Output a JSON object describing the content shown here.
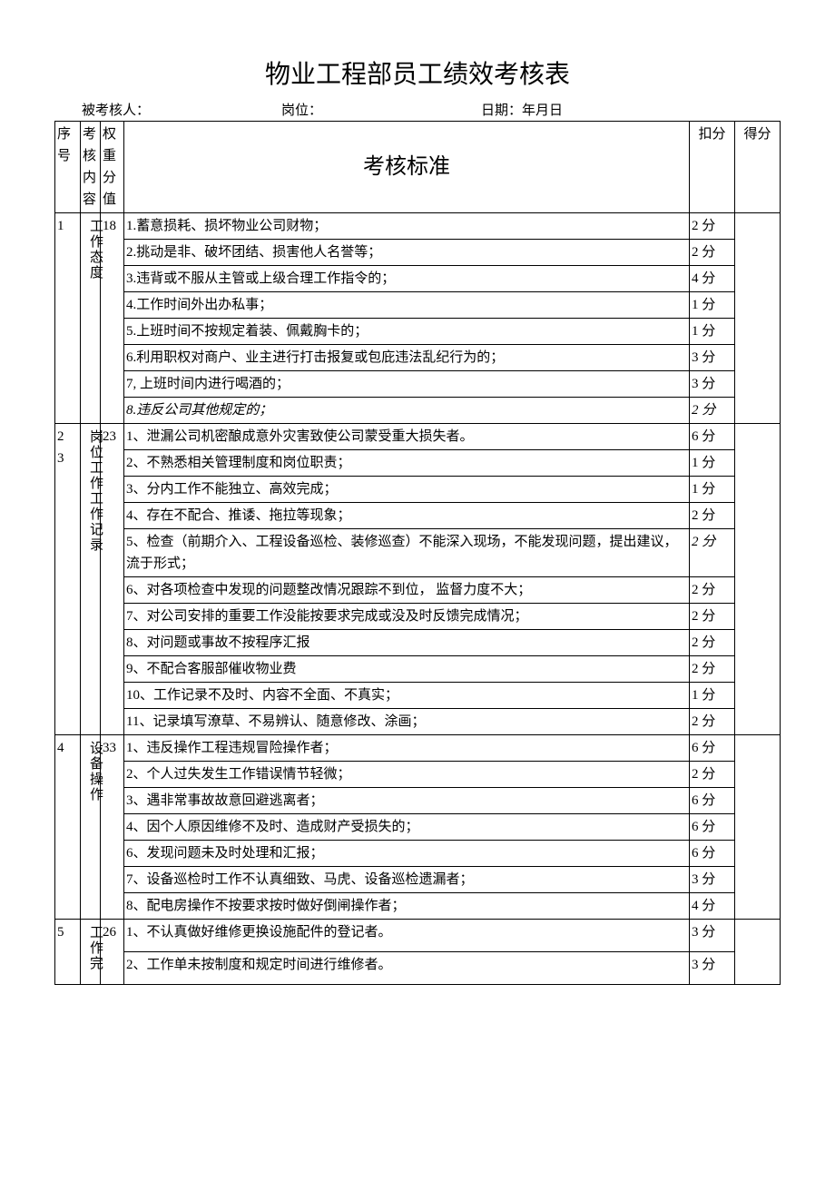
{
  "title": "物业工程部员工绩效考核表",
  "meta": {
    "assessee_label": "被考核人：",
    "position_label": "岗位：",
    "date_label": "日期：年月日"
  },
  "headers": {
    "seq": "序号",
    "category": "考核内容",
    "weight": "权重分值",
    "standard": "考核标准",
    "deduction": "扣分",
    "score": "得分"
  },
  "sections": [
    {
      "seq": "1",
      "category": "工作态度",
      "weight": "18",
      "rows": [
        {
          "std": "1.蓄意损耗、损坏物业公司财物；",
          "ded": "2 分"
        },
        {
          "std": "2.挑动是非、破坏团结、损害他人名誉等；",
          "ded": "2 分"
        },
        {
          "std": "3.违背或不服从主管或上级合理工作指令的；",
          "ded": "4 分"
        },
        {
          "std": "4.工作时间外出办私事；",
          "ded": "1 分"
        },
        {
          "std": "5.上班时间不按规定着装、佩戴胸卡的；",
          "ded": "1 分"
        },
        {
          "std": "6.利用职权对商户、业主进行打击报复或包庇违法乱纪行为的；",
          "ded": "3 分"
        },
        {
          "std": "7, 上班时间内进行喝酒的；",
          "ded": "3 分"
        },
        {
          "std": "8.违反公司其他规定的；",
          "ded": "2 分",
          "italic": true
        }
      ]
    },
    {
      "seq": "2\n3",
      "category": "岗位工作工作记录",
      "weight": "23",
      "rows": [
        {
          "std": "1、泄漏公司机密酿成意外灾害致使公司蒙受重大损失者。",
          "ded": "6 分"
        },
        {
          "std": "2、不熟悉相关管理制度和岗位职责；",
          "ded": "1 分"
        },
        {
          "std": "3、分内工作不能独立、高效完成；",
          "ded": "1 分"
        },
        {
          "std": "4、存在不配合、推诿、拖拉等现象；",
          "ded": "2 分"
        },
        {
          "std": "5、检查（前期介入、工程设备巡检、装修巡查）不能深入现场，不能发现问题，提出建议，流于形式；",
          "ded": "2 分",
          "italic_ded": true
        },
        {
          "std": "6、对各项检查中发现的问题整改情况跟踪不到位， 监督力度不大；",
          "ded": "2 分"
        },
        {
          "std": "7、对公司安排的重要工作没能按要求完成或没及时反馈完成情况；",
          "ded": "2 分"
        },
        {
          "std": "8、对问题或事故不按程序汇报",
          "ded": "2 分"
        },
        {
          "std": "9、不配合客服部催收物业费",
          "ded": "2 分"
        },
        {
          "std": "10、工作记录不及时、内容不全面、不真实；",
          "ded": "1 分"
        },
        {
          "std": "11、记录填写潦草、不易辨认、随意修改、涂画；",
          "ded": "2 分"
        }
      ]
    },
    {
      "seq": "4",
      "category": "设备操作",
      "weight": "33",
      "rows": [
        {
          "std": "1、违反操作工程违规冒险操作者；",
          "ded": "6 分"
        },
        {
          "std": "2、个人过失发生工作错误情节轻微；",
          "ded": "2 分"
        },
        {
          "std": "3、遇非常事故故意回避逃离者；",
          "ded": "6 分"
        },
        {
          "std": "4、因个人原因维修不及时、造成财产受损失的；",
          "ded": "6 分"
        },
        {
          "std": "6、发现问题未及时处理和汇报；",
          "ded": "6 分"
        },
        {
          "std": "7、设备巡检时工作不认真细致、马虎、设备巡检遗漏者；",
          "ded": "3 分"
        },
        {
          "std": "8、配电房操作不按要求按时做好倒闸操作者；",
          "ded": "4 分"
        }
      ]
    },
    {
      "seq": "5",
      "category": "工作完",
      "weight": "26",
      "rows": [
        {
          "std": "1、不认真做好维修更换设施配件的登记者。",
          "ded": "3 分"
        },
        {
          "std": "2、工作单未按制度和规定时间进行维修者。",
          "ded": "3 分"
        }
      ]
    }
  ]
}
